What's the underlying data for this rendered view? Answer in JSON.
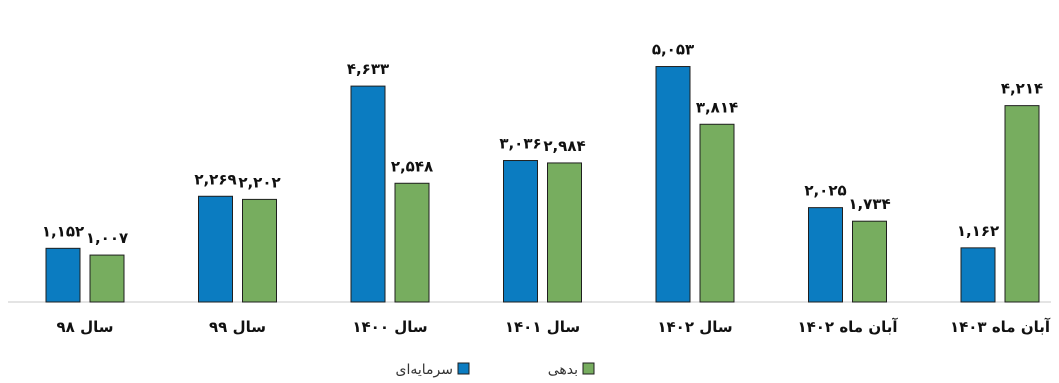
{
  "chart_data": {
    "type": "bar",
    "categories": [
      "سال ۹۸",
      "سال ۹۹",
      "سال ۱۴۰۰",
      "سال ۱۴۰۱",
      "سال ۱۴۰۲",
      "آبان ماه ۱۴۰۲",
      "آبان ماه ۱۴۰۳"
    ],
    "series": [
      {
        "name": "سرمایه‌ای",
        "color": "#0B7CC1",
        "values": [
          1152,
          2269,
          4633,
          3036,
          5053,
          2025,
          1162
        ],
        "labels": [
          "۱,۱۵۲",
          "۲,۲۶۹",
          "۴,۶۳۳",
          "۳,۰۳۶",
          "۵,۰۵۳",
          "۲,۰۲۵",
          "۱,۱۶۲"
        ]
      },
      {
        "name": "بدهی",
        "color": "#77AD5F",
        "values": [
          1007,
          2202,
          2548,
          2984,
          3814,
          1734,
          4214
        ],
        "labels": [
          "۱,۰۰۷",
          "۲,۲۰۲",
          "۲,۵۴۸",
          "۲,۹۸۴",
          "۳,۸۱۴",
          "۱,۷۳۴",
          "۴,۲۱۴"
        ]
      }
    ],
    "ylim": [
      0,
      5800
    ],
    "grid": false,
    "legend": "bottom"
  }
}
